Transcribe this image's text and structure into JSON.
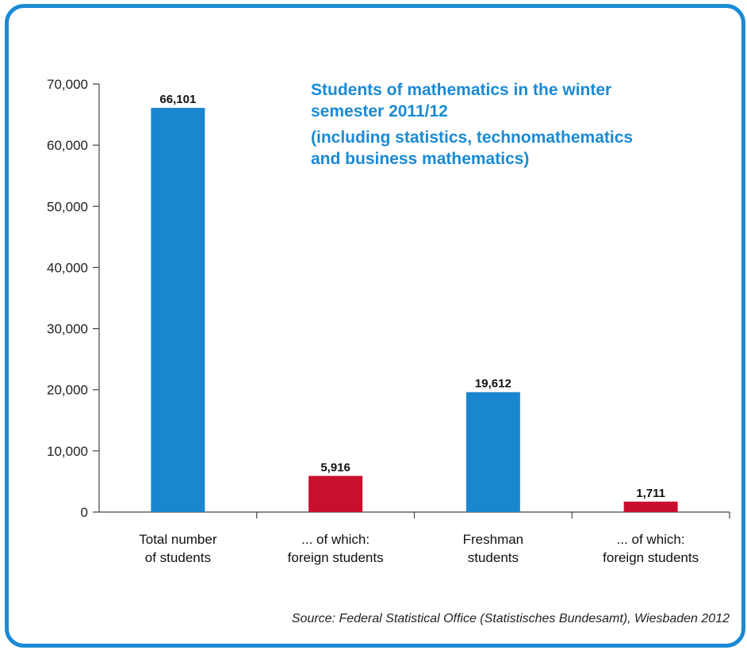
{
  "chart_data": {
    "type": "bar",
    "title_lines": [
      "Students of mathematics in the winter",
      "semester 2011/12",
      "(including statistics, technomathematics",
      "and business mathematics)"
    ],
    "categories": [
      [
        "Total number",
        "of students"
      ],
      [
        "... of which:",
        "foreign students"
      ],
      [
        "Freshman",
        "students"
      ],
      [
        "... of which:",
        "foreign students"
      ]
    ],
    "values": [
      66101,
      5916,
      19612,
      1711
    ],
    "data_labels": [
      "66,101",
      "5,916",
      "19,612",
      "1,711"
    ],
    "bar_colors": [
      "#1b86d0",
      "#c8102e",
      "#1b86d0",
      "#c8102e"
    ],
    "ylim": [
      0,
      70000
    ],
    "yticks": [
      0,
      10000,
      20000,
      30000,
      40000,
      50000,
      60000,
      70000
    ],
    "ytick_labels": [
      "0",
      "10,000",
      "20,000",
      "30,000",
      "40,000",
      "50,000",
      "60,000",
      "70,000"
    ],
    "xlabel": "",
    "ylabel": "",
    "grid": false,
    "source": "Source: Federal Statistical Office (Statistisches Bundesamt), Wiesbaden 2012"
  },
  "colors": {
    "frame": "#1a8ad4",
    "title": "#1a8ad4"
  }
}
